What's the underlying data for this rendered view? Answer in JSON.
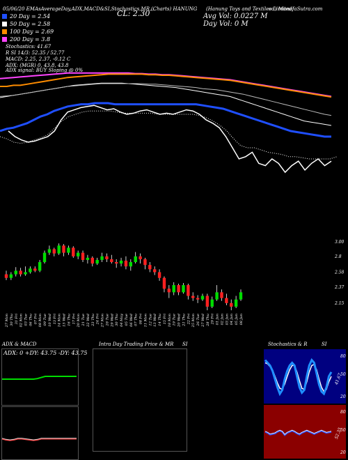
{
  "header": {
    "line1": "05/06/20  EMAsAverageDay,ADX,MACD&SI,Stochastics,MR,...",
    "cl": "CL: 2.30",
    "charts_for": "(Charts) HANUNG",
    "market": "(Hanung Toys and Textiles Limited)",
    "site": "ed) MunafaSutra.com",
    "avg_vol": "Avg Vol: 0.0227 M",
    "day_vol": "Day Vol: 0   M"
  },
  "legend": [
    {
      "label": "20   Day = 2.54",
      "color": "#1f4fff"
    },
    {
      "label": "50   Day = 2.58",
      "color": "#ffffff"
    },
    {
      "label": "100  Day = 2.69",
      "color": "#ff8c00"
    },
    {
      "label": "200  Day = 3.8",
      "color": "#ff44ff"
    }
  ],
  "indicators": {
    "stoch": "Stochastics: 41.67",
    "rsi": "R             SI 14/3: 52.35 / 52.77",
    "macd": "MACD: 2.25, 2.37,  -0.12  C",
    "adx": "ADX:                    (MGR) 0, 43.8, 43.8",
    "adx_signal": "ADX  signal:                     BUY Sloping @ 0%"
  },
  "panels": {
    "adx_title": "ADX  & MACD",
    "adx_values": "ADX: 0   +DY: 43.75  -DY: 43.75",
    "intra_title": "Intra  Day Trading Price  & MR",
    "si_title": "SI",
    "stoch_title": "Stochastics & R",
    "stoch_si": "SI",
    "stoch_value": "41.67",
    "rsi_value": "52.35",
    "stoch_ticks": [
      "80",
      "50",
      "20"
    ],
    "rsi_ticks": [
      "80",
      "50",
      "20"
    ]
  },
  "chart_data": {
    "type": "candlestick",
    "title": "",
    "dates": [
      "27 Mon",
      "30 Thu",
      "31 Fri",
      "02 Mon",
      "03 Tue",
      "06 Thu",
      "07 Fri",
      "08 Mon",
      "09 Tue",
      "10 Wed",
      "13 Fri",
      "14 Mon",
      "15 Wed",
      "16 Thu",
      "17 Fri",
      "20 Mon",
      "21 Tue",
      "22 Wed",
      "23 Thu",
      "24 Fri",
      "27 Mon",
      "28 Tue",
      "29 Wed",
      "30 Thu",
      "04 May",
      "05 Tue",
      "06 Wed",
      "07 Thu",
      "08 Fri",
      "11 Mon",
      "12 Tue",
      "13 Wed",
      "14 Thu",
      "15 Fri",
      "18 Mon",
      "19 Tue",
      "20 Wed",
      "21 Thu",
      "22 Fri",
      "25 Mon",
      "26 Tue",
      "27 Wed",
      "28 Thu",
      "29 Fri",
      "01 Jun",
      "02 Jun",
      "03 Jun",
      "04 Jun",
      "05 Jun",
      "08 Jun"
    ],
    "price_ticks": [
      3.0,
      2.8,
      2.58,
      2.37,
      2.15
    ],
    "candles": [
      {
        "o": 2.55,
        "c": 2.5,
        "h": 2.6,
        "l": 2.47
      },
      {
        "o": 2.5,
        "c": 2.55,
        "h": 2.58,
        "l": 2.47
      },
      {
        "o": 2.55,
        "c": 2.6,
        "h": 2.65,
        "l": 2.52
      },
      {
        "o": 2.6,
        "c": 2.55,
        "h": 2.64,
        "l": 2.52
      },
      {
        "o": 2.55,
        "c": 2.58,
        "h": 2.66,
        "l": 2.53
      },
      {
        "o": 2.58,
        "c": 2.63,
        "h": 2.66,
        "l": 2.56
      },
      {
        "o": 2.63,
        "c": 2.6,
        "h": 2.66,
        "l": 2.58
      },
      {
        "o": 2.6,
        "c": 2.72,
        "h": 2.75,
        "l": 2.58
      },
      {
        "o": 2.72,
        "c": 2.85,
        "h": 2.88,
        "l": 2.7
      },
      {
        "o": 2.85,
        "c": 2.9,
        "h": 2.95,
        "l": 2.82
      },
      {
        "o": 2.9,
        "c": 2.84,
        "h": 2.92,
        "l": 2.8
      },
      {
        "o": 2.84,
        "c": 2.95,
        "h": 2.98,
        "l": 2.82
      },
      {
        "o": 2.95,
        "c": 2.85,
        "h": 2.97,
        "l": 2.8
      },
      {
        "o": 2.85,
        "c": 2.92,
        "h": 2.95,
        "l": 2.82
      },
      {
        "o": 2.92,
        "c": 2.8,
        "h": 2.94,
        "l": 2.78
      },
      {
        "o": 2.8,
        "c": 2.85,
        "h": 2.88,
        "l": 2.76
      },
      {
        "o": 2.85,
        "c": 2.75,
        "h": 2.88,
        "l": 2.72
      },
      {
        "o": 2.75,
        "c": 2.78,
        "h": 2.82,
        "l": 2.7
      },
      {
        "o": 2.78,
        "c": 2.7,
        "h": 2.8,
        "l": 2.66
      },
      {
        "o": 2.7,
        "c": 2.75,
        "h": 2.78,
        "l": 2.68
      },
      {
        "o": 2.75,
        "c": 2.8,
        "h": 2.85,
        "l": 2.72
      },
      {
        "o": 2.8,
        "c": 2.76,
        "h": 2.84,
        "l": 2.72
      },
      {
        "o": 2.76,
        "c": 2.72,
        "h": 2.82,
        "l": 2.7
      },
      {
        "o": 2.72,
        "c": 2.7,
        "h": 2.76,
        "l": 2.64
      },
      {
        "o": 2.7,
        "c": 2.74,
        "h": 2.78,
        "l": 2.66
      },
      {
        "o": 2.74,
        "c": 2.66,
        "h": 2.8,
        "l": 2.62
      },
      {
        "o": 2.66,
        "c": 2.72,
        "h": 2.76,
        "l": 2.6
      },
      {
        "o": 2.72,
        "c": 2.8,
        "h": 2.86,
        "l": 2.7
      },
      {
        "o": 2.8,
        "c": 2.76,
        "h": 2.84,
        "l": 2.7
      },
      {
        "o": 2.76,
        "c": 2.68,
        "h": 2.78,
        "l": 2.62
      },
      {
        "o": 2.68,
        "c": 2.62,
        "h": 2.72,
        "l": 2.58
      },
      {
        "o": 2.62,
        "c": 2.58,
        "h": 2.66,
        "l": 2.54
      },
      {
        "o": 2.58,
        "c": 2.5,
        "h": 2.62,
        "l": 2.46
      },
      {
        "o": 2.5,
        "c": 2.35,
        "h": 2.52,
        "l": 2.3
      },
      {
        "o": 2.35,
        "c": 2.3,
        "h": 2.4,
        "l": 2.22
      },
      {
        "o": 2.3,
        "c": 2.4,
        "h": 2.44,
        "l": 2.26
      },
      {
        "o": 2.4,
        "c": 2.3,
        "h": 2.42,
        "l": 2.26
      },
      {
        "o": 2.3,
        "c": 2.4,
        "h": 2.43,
        "l": 2.28
      },
      {
        "o": 2.4,
        "c": 2.25,
        "h": 2.42,
        "l": 2.2
      },
      {
        "o": 2.25,
        "c": 2.22,
        "h": 2.3,
        "l": 2.18
      },
      {
        "o": 2.22,
        "c": 2.2,
        "h": 2.26,
        "l": 2.15
      },
      {
        "o": 2.2,
        "c": 2.25,
        "h": 2.28,
        "l": 2.18
      },
      {
        "o": 2.25,
        "c": 2.1,
        "h": 2.28,
        "l": 2.05
      },
      {
        "o": 2.1,
        "c": 2.2,
        "h": 2.24,
        "l": 2.08
      },
      {
        "o": 2.2,
        "c": 2.3,
        "h": 2.4,
        "l": 2.18
      },
      {
        "o": 2.3,
        "c": 2.22,
        "h": 2.34,
        "l": 2.18
      },
      {
        "o": 2.22,
        "c": 2.15,
        "h": 2.28,
        "l": 2.12
      },
      {
        "o": 2.15,
        "c": 2.1,
        "h": 2.2,
        "l": 2.05
      },
      {
        "o": 2.1,
        "c": 2.2,
        "h": 2.25,
        "l": 2.08
      },
      {
        "o": 2.2,
        "c": 2.3,
        "h": 2.34,
        "l": 2.18
      }
    ],
    "ema_series": [
      {
        "values": [
          0.55,
          0.53,
          0.52,
          0.5,
          0.48,
          0.45,
          0.42,
          0.4,
          0.37,
          0.35,
          0.33,
          0.32,
          0.31,
          0.31,
          0.3,
          0.3,
          0.3,
          0.31,
          0.31,
          0.31,
          0.31,
          0.31,
          0.31,
          0.31,
          0.31,
          0.31,
          0.31,
          0.31,
          0.31,
          0.31,
          0.32,
          0.33,
          0.34,
          0.35,
          0.37,
          0.39,
          0.41,
          0.43,
          0.45,
          0.47,
          0.49,
          0.51,
          0.53,
          0.55,
          0.56,
          0.57,
          0.58,
          0.59,
          0.6,
          0.6
        ]
      },
      {
        "values": [
          0.25,
          0.24,
          0.23,
          0.22,
          0.21,
          0.2,
          0.19,
          0.18,
          0.17,
          0.16,
          0.15,
          0.14,
          0.135,
          0.13,
          0.125,
          0.12,
          0.12,
          0.12,
          0.12,
          0.125,
          0.13,
          0.135,
          0.14,
          0.145,
          0.15,
          0.155,
          0.16,
          0.17,
          0.18,
          0.19,
          0.2,
          0.21,
          0.22,
          0.23,
          0.24,
          0.26,
          0.28,
          0.3,
          0.32,
          0.34,
          0.36,
          0.38,
          0.4,
          0.42,
          0.44,
          0.46,
          0.47,
          0.48,
          0.49,
          0.5
        ]
      },
      {
        "values": [
          0.24,
          0.235,
          0.23,
          0.22,
          0.21,
          0.2,
          0.19,
          0.18,
          0.17,
          0.16,
          0.15,
          0.145,
          0.14,
          0.135,
          0.13,
          0.125,
          0.125,
          0.125,
          0.125,
          0.125,
          0.125,
          0.125,
          0.13,
          0.13,
          0.135,
          0.14,
          0.145,
          0.15,
          0.155,
          0.16,
          0.17,
          0.175,
          0.18,
          0.19,
          0.2,
          0.21,
          0.22,
          0.235,
          0.25,
          0.265,
          0.28,
          0.295,
          0.31,
          0.325,
          0.34,
          0.355,
          0.37,
          0.385,
          0.4,
          0.41
        ]
      },
      {
        "values": [
          0.08,
          0.075,
          0.07,
          0.065,
          0.06,
          0.055,
          0.05,
          0.045,
          0.04,
          0.035,
          0.03,
          0.03,
          0.03,
          0.03,
          0.03,
          0.03,
          0.03,
          0.03,
          0.03,
          0.03,
          0.035,
          0.035,
          0.04,
          0.04,
          0.045,
          0.045,
          0.05,
          0.055,
          0.06,
          0.065,
          0.07,
          0.075,
          0.08,
          0.085,
          0.09,
          0.1,
          0.11,
          0.12,
          0.13,
          0.14,
          0.15,
          0.16,
          0.17,
          0.18,
          0.19,
          0.2,
          0.21,
          0.22,
          0.23,
          0.24
        ]
      },
      {
        "values": [
          0.15,
          0.15,
          0.14,
          0.14,
          0.13,
          0.12,
          0.11,
          0.1,
          0.09,
          0.08,
          0.07,
          0.065,
          0.06,
          0.055,
          0.05,
          0.045,
          0.04,
          0.04,
          0.04,
          0.04,
          0.04,
          0.04,
          0.045,
          0.045,
          0.05,
          0.05,
          0.055,
          0.06,
          0.065,
          0.07,
          0.075,
          0.08,
          0.085,
          0.09,
          0.095,
          0.105,
          0.115,
          0.125,
          0.135,
          0.145,
          0.155,
          0.165,
          0.175,
          0.185,
          0.195,
          0.205,
          0.215,
          0.225,
          0.235,
          0.245
        ]
      }
    ],
    "price_line": [
      0.55,
      0.6,
      0.63,
      0.65,
      0.64,
      0.62,
      0.6,
      0.55,
      0.45,
      0.38,
      0.36,
      0.34,
      0.33,
      0.32,
      0.34,
      0.36,
      0.35,
      0.38,
      0.4,
      0.39,
      0.37,
      0.36,
      0.38,
      0.4,
      0.39,
      0.4,
      0.38,
      0.36,
      0.37,
      0.4,
      0.45,
      0.48,
      0.52,
      0.6,
      0.7,
      0.8,
      0.78,
      0.74,
      0.84,
      0.86,
      0.8,
      0.84,
      0.92,
      0.86,
      0.82,
      0.9,
      0.84,
      0.8,
      0.86,
      0.82
    ],
    "avg_line": [
      0.6,
      0.62,
      0.65,
      0.66,
      0.65,
      0.63,
      0.61,
      0.58,
      0.52,
      0.46,
      0.42,
      0.4,
      0.38,
      0.37,
      0.37,
      0.37,
      0.37,
      0.38,
      0.39,
      0.39,
      0.39,
      0.39,
      0.39,
      0.4,
      0.4,
      0.4,
      0.4,
      0.4,
      0.4,
      0.41,
      0.43,
      0.46,
      0.5,
      0.55,
      0.62,
      0.68,
      0.7,
      0.7,
      0.72,
      0.74,
      0.75,
      0.76,
      0.78,
      0.78,
      0.79,
      0.8,
      0.8,
      0.8,
      0.8,
      0.78
    ],
    "volume": [
      0,
      0,
      0,
      0,
      0,
      0,
      0,
      0,
      0,
      0,
      0,
      0,
      0,
      0,
      0,
      0,
      0,
      0,
      0,
      0,
      0,
      0,
      0,
      0,
      0,
      0,
      0,
      0,
      0,
      0,
      0,
      0,
      0,
      0,
      0,
      0,
      0,
      0,
      0,
      0,
      0,
      0,
      0,
      0,
      0,
      0,
      0,
      0,
      0,
      0
    ],
    "adx_line": [
      0.55,
      0.55,
      0.55,
      0.55,
      0.55,
      0.55,
      0.55,
      0.55,
      0.55,
      0.54,
      0.52,
      0.5,
      0.5,
      0.5,
      0.5,
      0.5,
      0.5,
      0.5,
      0.5,
      0.5
    ],
    "macd_line": [
      0.5,
      0.52,
      0.53,
      0.52,
      0.5,
      0.5,
      0.51,
      0.52,
      0.53,
      0.52,
      0.5,
      0.5,
      0.5,
      0.5,
      0.5,
      0.5,
      0.5,
      0.5,
      0.5,
      0.5
    ],
    "stoch_line": [
      0.2,
      0.25,
      0.3,
      0.4,
      0.55,
      0.7,
      0.82,
      0.75,
      0.55,
      0.4,
      0.3,
      0.25,
      0.3,
      0.5,
      0.7,
      0.8,
      0.75,
      0.5,
      0.3,
      0.2,
      0.25,
      0.45,
      0.65,
      0.78,
      0.82,
      0.7,
      0.5,
      0.42
    ],
    "stoch_signal": [
      0.25,
      0.27,
      0.32,
      0.38,
      0.5,
      0.62,
      0.72,
      0.74,
      0.64,
      0.5,
      0.38,
      0.3,
      0.3,
      0.42,
      0.58,
      0.72,
      0.74,
      0.6,
      0.42,
      0.3,
      0.28,
      0.38,
      0.55,
      0.7,
      0.78,
      0.74,
      0.6,
      0.5
    ],
    "rsi_line": [
      0.5,
      0.52,
      0.55,
      0.54,
      0.53,
      0.5,
      0.48,
      0.5,
      0.56,
      0.52,
      0.5,
      0.48,
      0.5,
      0.53,
      0.55,
      0.52,
      0.5,
      0.48,
      0.5,
      0.52,
      0.54,
      0.52,
      0.5,
      0.48,
      0.5,
      0.52,
      0.51,
      0.5
    ]
  }
}
